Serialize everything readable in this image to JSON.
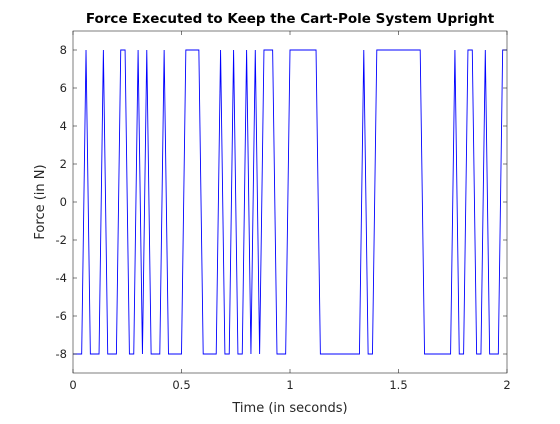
{
  "chart_data": {
    "type": "line",
    "title": "Force Executed to Keep the Cart-Pole System Upright",
    "xlabel": "Time (in seconds)",
    "ylabel": "Force (in N)",
    "xlim": [
      0,
      2
    ],
    "ylim": [
      -9,
      9
    ],
    "x_ticks": [
      0,
      0.5,
      1,
      1.5,
      2
    ],
    "x_tick_labels": [
      "0",
      "0.5",
      "1",
      "1.5",
      "2"
    ],
    "y_ticks": [
      -8,
      -6,
      -4,
      -2,
      0,
      2,
      4,
      6,
      8
    ],
    "y_tick_labels": [
      "-8",
      "-6",
      "-4",
      "-2",
      "0",
      "2",
      "4",
      "6",
      "8"
    ],
    "grid": false,
    "legend": "none",
    "colors": {
      "series": "#0000ff",
      "axes": "#262626",
      "background": "#ffffff"
    },
    "series": [
      {
        "step": 0.02,
        "values": [
          -8,
          -8,
          -8,
          8,
          -8,
          -8,
          -8,
          8,
          -8,
          -8,
          -8,
          8,
          8,
          -8,
          -8,
          8,
          -8,
          8,
          -8,
          -8,
          -8,
          8,
          -8,
          -8,
          -8,
          -8,
          8,
          8,
          8,
          8,
          -8,
          -8,
          -8,
          -8,
          8,
          -8,
          -8,
          8,
          -8,
          -8,
          8,
          -8,
          8,
          -8,
          8,
          8,
          8,
          -8,
          -8,
          -8,
          8,
          8,
          8,
          8,
          8,
          8,
          8,
          -8,
          -8,
          -8,
          -8,
          -8,
          -8,
          -8,
          -8,
          -8,
          -8,
          8,
          -8,
          -8,
          8,
          8,
          8,
          8,
          8,
          8,
          8,
          8,
          8,
          8,
          8,
          -8,
          -8,
          -8,
          -8,
          -8,
          -8,
          -8,
          8,
          -8,
          -8,
          8,
          8,
          -8,
          -8,
          8,
          -8,
          -8,
          -8,
          8,
          8
        ]
      }
    ]
  }
}
